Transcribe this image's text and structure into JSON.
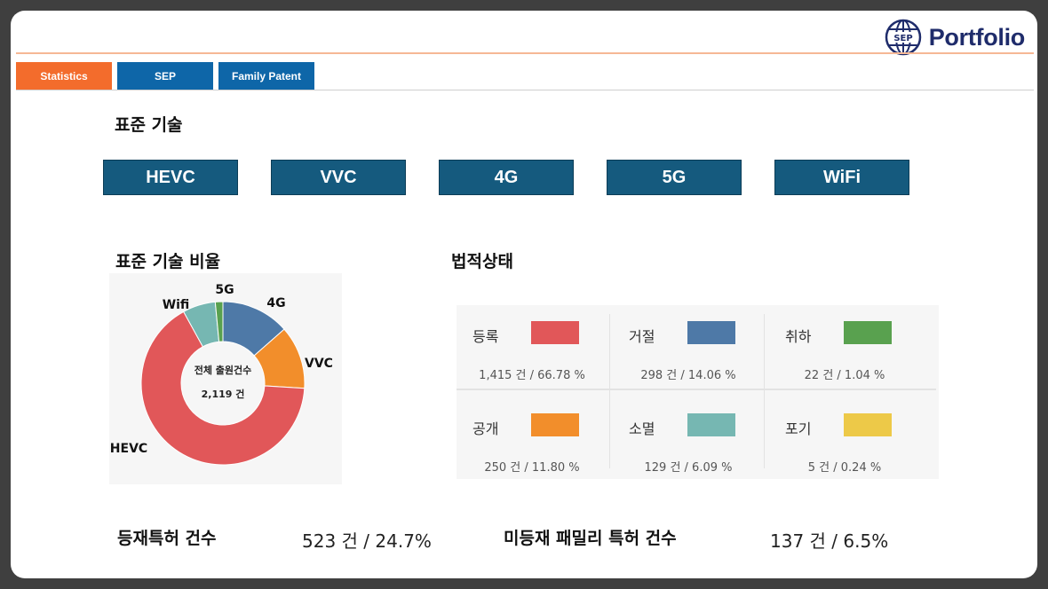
{
  "brand": {
    "name": "Portfolio",
    "logo_text": "SEP"
  },
  "tabs": [
    {
      "label": "Statistics",
      "active": true
    },
    {
      "label": "SEP",
      "active": false
    },
    {
      "label": "Family Patent",
      "active": false
    }
  ],
  "tech_section": {
    "title": "표준 기술"
  },
  "tech_buttons": [
    "HEVC",
    "VVC",
    "4G",
    "5G",
    "WiFi"
  ],
  "chart_section": {
    "title": "표준 기술 비율"
  },
  "chart_data": {
    "type": "pie",
    "donut": true,
    "center_label": "전체 출원건수",
    "center_value": "2,119 건",
    "slices": [
      {
        "label": "4G",
        "value": 13.5,
        "color": "#4e79a7"
      },
      {
        "label": "VVC",
        "value": 12.5,
        "color": "#f28e2b"
      },
      {
        "label": "HEVC",
        "value": 66.0,
        "color": "#e15759"
      },
      {
        "label": "Wifi",
        "value": 6.5,
        "color": "#76b7b2"
      },
      {
        "label": "5G",
        "value": 1.5,
        "color": "#59a14f"
      }
    ]
  },
  "legal_section": {
    "title": "법적상태",
    "items": [
      {
        "label": "등록",
        "value": "1,415 건 / 66.78 %",
        "color": "#e15759"
      },
      {
        "label": "거절",
        "value": "298 건 / 14.06 %",
        "color": "#4e79a7"
      },
      {
        "label": "취하",
        "value": "22 건 / 1.04 %",
        "color": "#59a14f"
      },
      {
        "label": "공개",
        "value": "250 건 / 11.80 %",
        "color": "#f28e2b"
      },
      {
        "label": "소멸",
        "value": "129 건 / 6.09 %",
        "color": "#76b7b2"
      },
      {
        "label": "포기",
        "value": "5 건 / 0.24 %",
        "color": "#edc948"
      }
    ]
  },
  "summary": {
    "registered_label": "등재특허 건수",
    "registered_value": "523 건 / 24.7%",
    "unregistered_label": "미등재 패밀리 특허 건수",
    "unregistered_value": "137 건 / 6.5%"
  }
}
